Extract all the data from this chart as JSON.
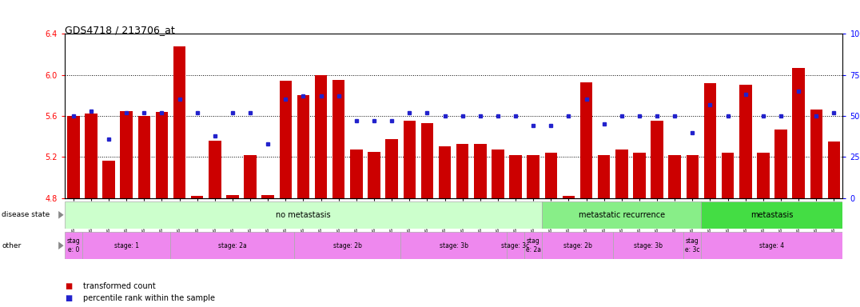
{
  "title": "GDS4718 / 213706_at",
  "samples": [
    "GSM549121",
    "GSM549102",
    "GSM549104",
    "GSM549108",
    "GSM549119",
    "GSM549133",
    "GSM549139",
    "GSM549099",
    "GSM549109",
    "GSM549110",
    "GSM549114",
    "GSM549122",
    "GSM549134",
    "GSM549136",
    "GSM549140",
    "GSM549111",
    "GSM549113",
    "GSM549132",
    "GSM549137",
    "GSM549142",
    "GSM549100",
    "GSM549107",
    "GSM549115",
    "GSM549116",
    "GSM549120",
    "GSM549131",
    "GSM549118",
    "GSM549129",
    "GSM549123",
    "GSM549124",
    "GSM549126",
    "GSM549128",
    "GSM549103",
    "GSM549117",
    "GSM549138",
    "GSM549141",
    "GSM549130",
    "GSM549101",
    "GSM549105",
    "GSM549106",
    "GSM549112",
    "GSM549125",
    "GSM549127",
    "GSM549135"
  ],
  "bar_values": [
    5.6,
    5.62,
    5.16,
    5.65,
    5.6,
    5.64,
    6.28,
    4.82,
    5.36,
    4.83,
    5.22,
    4.83,
    5.94,
    5.8,
    6.0,
    5.95,
    5.27,
    5.25,
    5.37,
    5.55,
    5.53,
    5.3,
    5.33,
    5.33,
    5.27,
    5.22,
    5.22,
    5.24,
    4.82,
    5.93,
    5.22,
    5.27,
    5.24,
    5.55,
    5.22,
    5.22,
    5.92,
    5.24,
    5.9,
    5.24,
    5.47,
    6.07,
    5.66,
    5.35
  ],
  "percentile_values": [
    50,
    53,
    36,
    52,
    52,
    52,
    60,
    52,
    38,
    52,
    52,
    33,
    60,
    62,
    62,
    62,
    47,
    47,
    47,
    52,
    52,
    50,
    50,
    50,
    50,
    50,
    44,
    44,
    50,
    60,
    45,
    50,
    50,
    50,
    50,
    40,
    57,
    50,
    63,
    50,
    50,
    65,
    50,
    52
  ],
  "ylim": [
    4.8,
    6.4
  ],
  "yticks_left": [
    4.8,
    5.2,
    5.6,
    6.0,
    6.4
  ],
  "right_ylim": [
    0,
    100
  ],
  "right_yticks": [
    0,
    25,
    50,
    75,
    100
  ],
  "bar_color": "#cc0000",
  "dot_color": "#2222cc",
  "disease_state_regions": [
    {
      "label": "no metastasis",
      "start": 0,
      "end": 27,
      "facecolor": "#ccffcc"
    },
    {
      "label": "metastatic recurrence",
      "start": 27,
      "end": 36,
      "facecolor": "#88ee88"
    },
    {
      "label": "metastasis",
      "start": 36,
      "end": 44,
      "facecolor": "#44dd44"
    }
  ],
  "stage_regions": [
    {
      "label": "stag\ne: 0",
      "start": 0,
      "end": 1
    },
    {
      "label": "stage: 1",
      "start": 1,
      "end": 6
    },
    {
      "label": "stage: 2a",
      "start": 6,
      "end": 13
    },
    {
      "label": "stage: 2b",
      "start": 13,
      "end": 19
    },
    {
      "label": "stage: 3b",
      "start": 19,
      "end": 25
    },
    {
      "label": "stage: 3c",
      "start": 25,
      "end": 26
    },
    {
      "label": "stag\ne: 2a",
      "start": 26,
      "end": 27
    },
    {
      "label": "stage: 2b",
      "start": 27,
      "end": 31
    },
    {
      "label": "stage: 3b",
      "start": 31,
      "end": 35
    },
    {
      "label": "stag\ne: 3c",
      "start": 35,
      "end": 36
    },
    {
      "label": "stage: 4",
      "start": 36,
      "end": 44
    }
  ],
  "stage_color": "#ee88ee",
  "legend_items": [
    {
      "label": "transformed count",
      "color": "#cc0000"
    },
    {
      "label": "percentile rank within the sample",
      "color": "#2222cc"
    }
  ]
}
